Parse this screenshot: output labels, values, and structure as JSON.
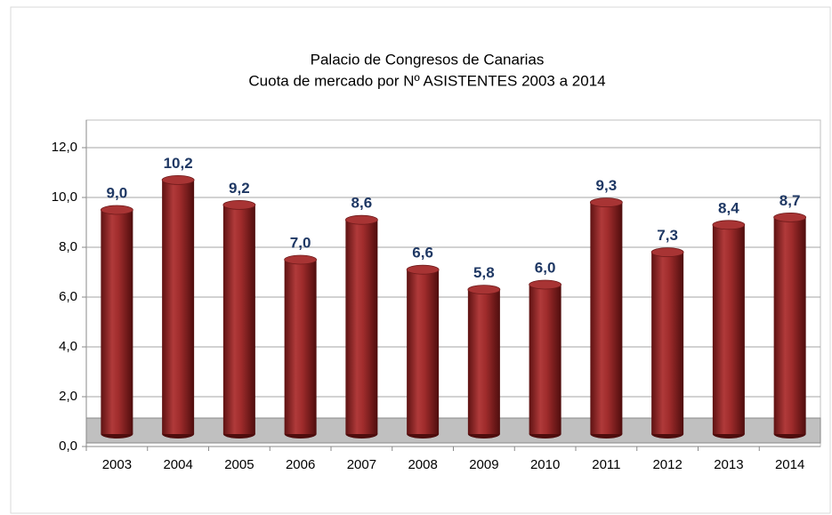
{
  "chart_data": {
    "type": "bar",
    "title": "Palacio de Congresos de Canarias",
    "subtitle": "Cuota de mercado por Nº ASISTENTES 2003 a 2014",
    "categories": [
      "2003",
      "2004",
      "2005",
      "2006",
      "2007",
      "2008",
      "2009",
      "2010",
      "2011",
      "2012",
      "2013",
      "2014"
    ],
    "values": [
      9.0,
      10.2,
      9.2,
      7.0,
      8.6,
      6.6,
      5.8,
      6.0,
      9.3,
      7.3,
      8.4,
      8.7
    ],
    "value_labels": [
      "9,0",
      "10,2",
      "9,2",
      "7,0",
      "8,6",
      "6,6",
      "5,8",
      "6,0",
      "9,3",
      "7,3",
      "8,4",
      "8,7"
    ],
    "color": "#8b2323",
    "ylim": [
      0,
      12
    ],
    "yticks": [
      {
        "value": 0,
        "label": "0,0"
      },
      {
        "value": 2,
        "label": "2,0"
      },
      {
        "value": 4,
        "label": "4,0"
      },
      {
        "value": 6,
        "label": "6,0"
      },
      {
        "value": 8,
        "label": "8,0"
      },
      {
        "value": 10,
        "label": "10,0"
      },
      {
        "value": 12,
        "label": "12,0"
      }
    ],
    "grid": true
  }
}
